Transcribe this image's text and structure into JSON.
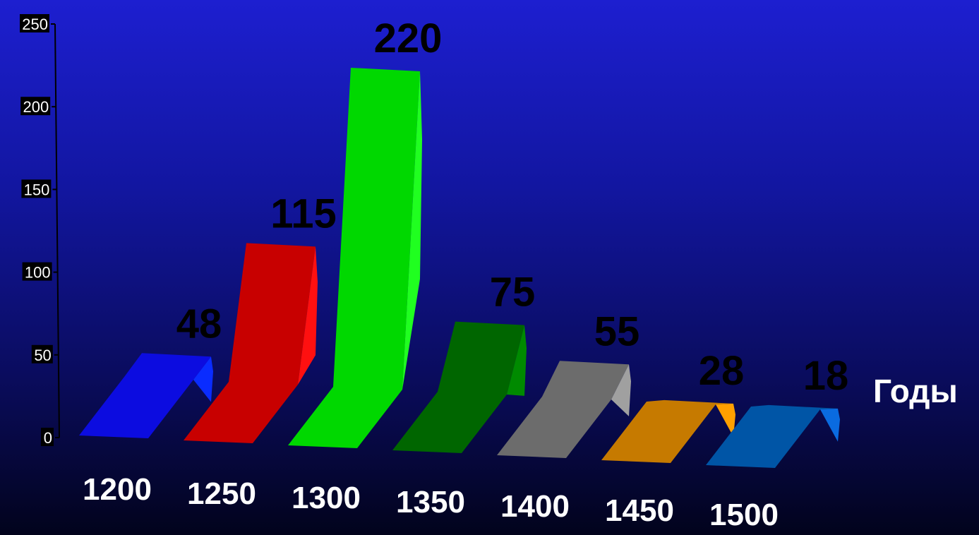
{
  "chart_data": {
    "type": "bar",
    "categories": [
      "1200",
      "1250",
      "1300",
      "1350",
      "1400",
      "1450",
      "1500"
    ],
    "values": [
      48,
      115,
      220,
      75,
      55,
      28,
      18
    ],
    "colors": [
      "#0c0ce0",
      "#c80000",
      "#00d800",
      "#006600",
      "#6c6c6c",
      "#c67a00",
      "#0055a6"
    ],
    "side_colors": [
      "#0a2cff",
      "#ff1010",
      "#20ff20",
      "#008a00",
      "#a0a0a0",
      "#ffa000",
      "#0a6be0"
    ],
    "xlabel": "Годы",
    "ylim": [
      0,
      250
    ],
    "yticks": [
      "0",
      "50",
      "100",
      "150",
      "200",
      "250"
    ],
    "grid": false
  }
}
